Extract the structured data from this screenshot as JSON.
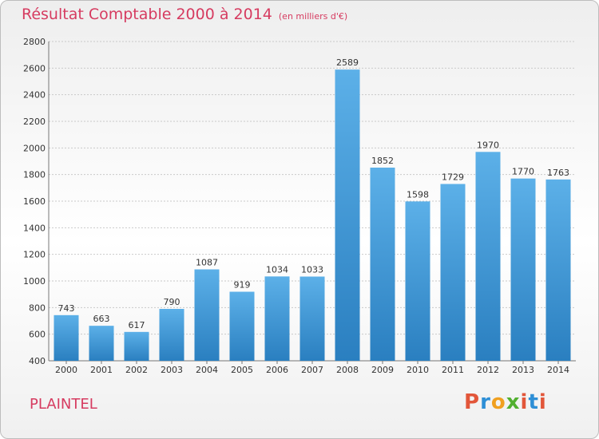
{
  "chart_data": {
    "type": "bar",
    "title": "Résultat Comptable 2000 à 2014",
    "subtitle": "(en milliers d'€)",
    "categories": [
      "2000",
      "2001",
      "2002",
      "2003",
      "2004",
      "2005",
      "2006",
      "2007",
      "2008",
      "2009",
      "2010",
      "2011",
      "2012",
      "2013",
      "2014"
    ],
    "values": [
      743,
      663,
      617,
      790,
      1087,
      919,
      1034,
      1033,
      2589,
      1852,
      1598,
      1729,
      1970,
      1770,
      1763
    ],
    "ylim": [
      400,
      2800
    ],
    "yticks": [
      400,
      600,
      800,
      1000,
      1200,
      1400,
      1600,
      1800,
      2000,
      2200,
      2400,
      2600,
      2800
    ],
    "grid": true,
    "bar_color": "#4a9fdc"
  },
  "labels": {
    "commune": "PLAINTEL",
    "logo": "Proxiti"
  },
  "colors": {
    "title": "#d63b60",
    "logo_letters": [
      "#e2563a",
      "#2e8fd6",
      "#f0a020",
      "#52b030",
      "#e2563a",
      "#2e8fd6",
      "#e2563a"
    ]
  }
}
